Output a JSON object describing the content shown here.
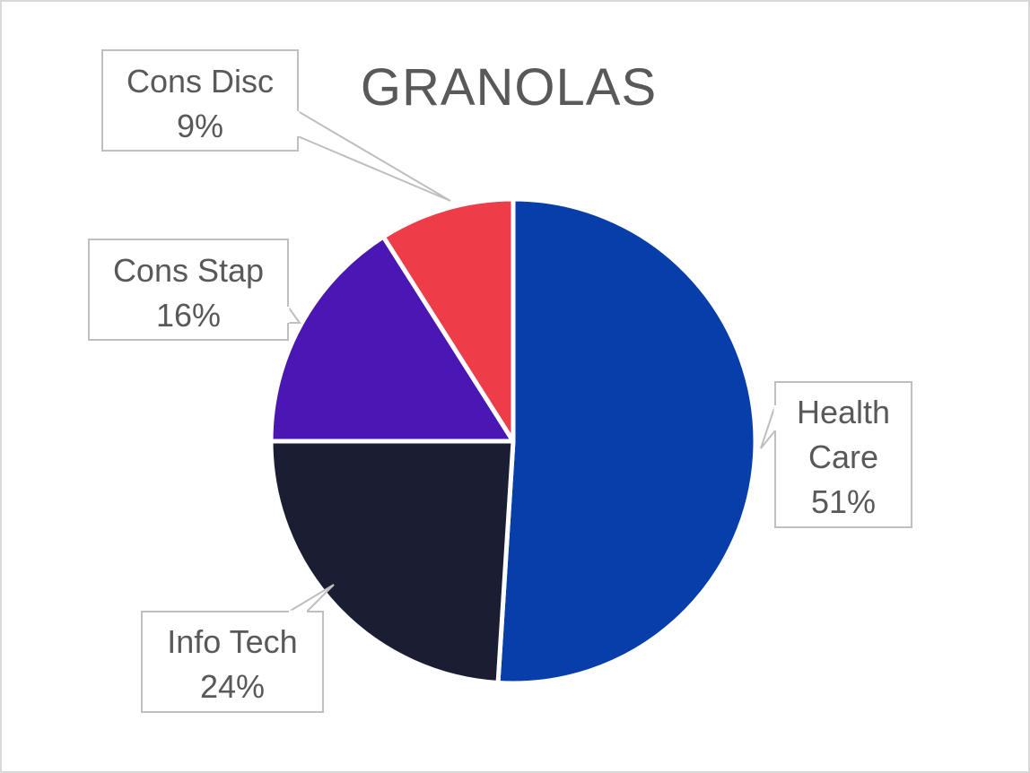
{
  "chart_data": {
    "type": "pie",
    "title": "GRANOLAS",
    "legend": "none",
    "data_labels": "callout (category name and percentage)",
    "slices": [
      {
        "label_lines": [
          "Health",
          "Care"
        ],
        "value": 51,
        "percent_label": "51%",
        "color": "#073EAA"
      },
      {
        "label_lines": [
          "Info Tech"
        ],
        "value": 24,
        "percent_label": "24%",
        "color": "#1B1D33"
      },
      {
        "label_lines": [
          "Cons Stap"
        ],
        "value": 16,
        "percent_label": "16%",
        "color": "#4A17B4"
      },
      {
        "label_lines": [
          "Cons Disc"
        ],
        "value": 9,
        "percent_label": "9%",
        "color": "#EF3C49"
      }
    ]
  }
}
